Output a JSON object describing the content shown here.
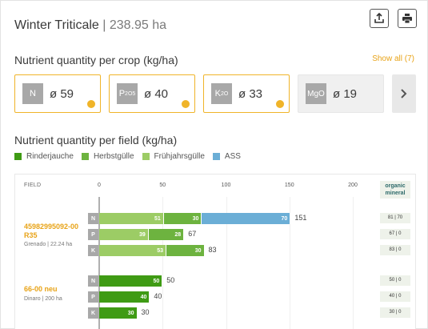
{
  "header": {
    "crop": "Winter Triticale",
    "separator": " | ",
    "area": "238.95 ha"
  },
  "crop_section": {
    "title": "Nutrient quantity per crop (kg/ha)",
    "show_all": "Show all (7)",
    "cards": [
      {
        "symbol": "N",
        "sub": "",
        "value": "ø 59",
        "selected": true
      },
      {
        "symbol": "P",
        "sub": "2O5",
        "value": "ø 40",
        "selected": true
      },
      {
        "symbol": "K",
        "sub": "2O",
        "value": "ø 33",
        "selected": true
      },
      {
        "symbol": "MgO",
        "sub": "",
        "value": "ø 19",
        "selected": false
      }
    ]
  },
  "field_section": {
    "title": "Nutrient quantity per field (kg/ha)",
    "legend": [
      {
        "label": "Rinderjauche",
        "color": "#3f9b14"
      },
      {
        "label": "Herbstgülle",
        "color": "#6db33f"
      },
      {
        "label": "Frühjahrsgülle",
        "color": "#9ccc65"
      },
      {
        "label": "ASS",
        "color": "#6baed6"
      }
    ],
    "column_field": "FIELD",
    "column_om_line1": "organic",
    "column_om_line2": "mineral"
  },
  "chart_data": {
    "type": "bar",
    "orientation": "horizontal-stacked",
    "x_ticks": [
      0,
      50,
      100,
      150,
      200
    ],
    "xlim": [
      0,
      250
    ],
    "fields": [
      {
        "name_line1": "45982995092-00",
        "name_line2": "R35",
        "sub": "Grenado | 22.24 ha",
        "rows": [
          {
            "nutrient": "N",
            "total": 151,
            "organic_mineral": "81 | 70",
            "segments": [
              {
                "series": "Frühjahrsgülle",
                "value": 51
              },
              {
                "series": "Herbstgülle",
                "value": 30
              },
              {
                "series": "ASS",
                "value": 70
              }
            ]
          },
          {
            "nutrient": "P",
            "total": 67,
            "organic_mineral": "67 | 0",
            "segments": [
              {
                "series": "Frühjahrsgülle",
                "value": 39
              },
              {
                "series": "Herbstgülle",
                "value": 28
              }
            ]
          },
          {
            "nutrient": "K",
            "total": 83,
            "organic_mineral": "83 | 0",
            "segments": [
              {
                "series": "Frühjahrsgülle",
                "value": 53
              },
              {
                "series": "Herbstgülle",
                "value": 30
              }
            ]
          }
        ]
      },
      {
        "name_line1": "66-00 neu",
        "name_line2": "",
        "sub": "Dinaro | 200 ha",
        "rows": [
          {
            "nutrient": "N",
            "total": 50,
            "organic_mineral": "50 | 0",
            "segments": [
              {
                "series": "Rinderjauche",
                "value": 50
              }
            ]
          },
          {
            "nutrient": "P",
            "total": 40,
            "organic_mineral": "40 | 0",
            "segments": [
              {
                "series": "Rinderjauche",
                "value": 40
              }
            ]
          },
          {
            "nutrient": "K",
            "total": 30,
            "organic_mineral": "30 | 0",
            "segments": [
              {
                "series": "Rinderjauche",
                "value": 30
              }
            ]
          }
        ]
      }
    ]
  }
}
